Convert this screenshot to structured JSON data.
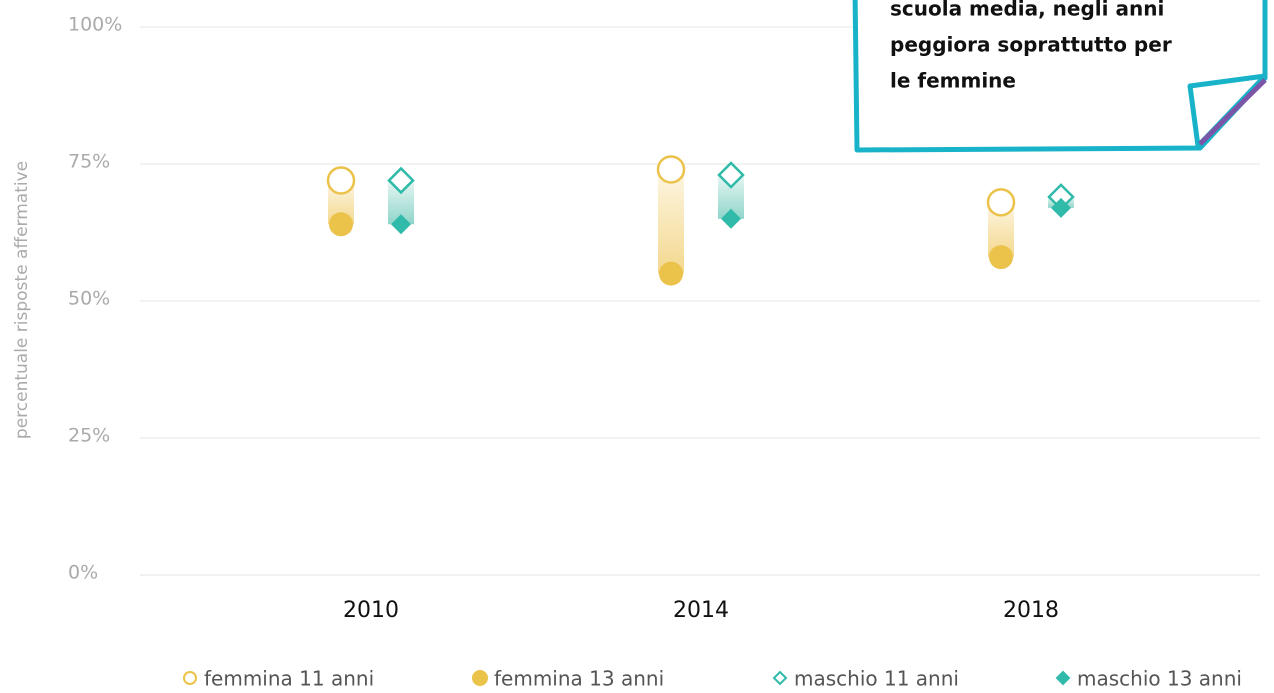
{
  "chart_data": {
    "type": "dumbbell",
    "y_label": "percentuale risposte affermative",
    "annotation": [
      "scuola media, negli anni",
      "peggiora soprattutto per",
      "le femmine"
    ],
    "categories": [
      "2010",
      "2014",
      "2018"
    ],
    "series": [
      {
        "name": "femmina 11 anni",
        "color": "#ebc24a",
        "marker": "circle-open",
        "values": [
          72,
          74,
          68
        ]
      },
      {
        "name": "femmina 13 anni",
        "color": "#ebc24a",
        "marker": "circle",
        "values": [
          64,
          55,
          58
        ]
      },
      {
        "name": "maschio 11 anni",
        "color": "#2fbaa9",
        "marker": "diamond-open",
        "values": [
          72,
          73,
          69
        ]
      },
      {
        "name": "maschio 13 anni",
        "color": "#2fbaa9",
        "marker": "diamond",
        "values": [
          64,
          65,
          67
        ]
      }
    ],
    "ylim": [
      0,
      100
    ],
    "yticks": [
      {
        "value": 0,
        "label": "0%"
      },
      {
        "value": 25,
        "label": "25%"
      },
      {
        "value": 50,
        "label": "50%"
      },
      {
        "value": 75,
        "label": "75%"
      },
      {
        "value": 100,
        "label": "100%"
      }
    ],
    "grid": true
  }
}
